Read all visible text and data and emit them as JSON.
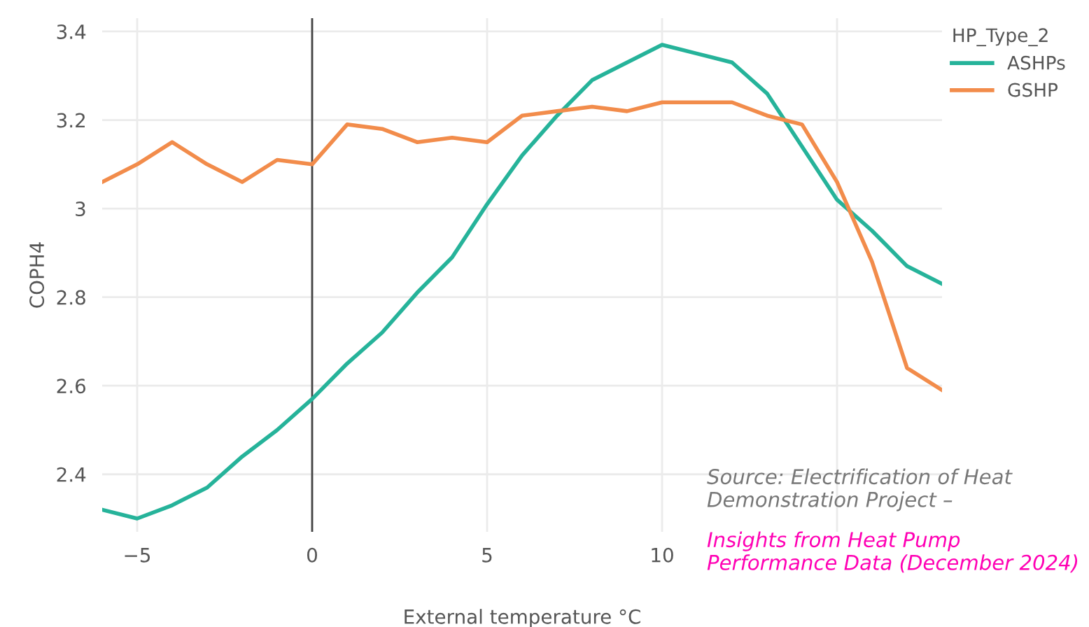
{
  "chart_data": {
    "type": "line",
    "xlabel": "External temperature °C",
    "ylabel": "COPH4",
    "legend_title": "HP_Type_2",
    "x": [
      -6,
      -5,
      -4,
      -3,
      -2,
      -1,
      0,
      1,
      2,
      3,
      4,
      5,
      6,
      7,
      8,
      9,
      10,
      11,
      12,
      13,
      14,
      15,
      16,
      17,
      18
    ],
    "series": [
      {
        "name": "ASHPs",
        "color": "#26b39a",
        "values": [
          2.32,
          2.3,
          2.33,
          2.37,
          2.44,
          2.5,
          2.57,
          2.65,
          2.72,
          2.81,
          2.89,
          3.01,
          3.12,
          3.21,
          3.29,
          3.33,
          3.37,
          3.35,
          3.33,
          3.26,
          3.14,
          3.02,
          2.95,
          2.87,
          2.83
        ]
      },
      {
        "name": "GSHP",
        "color": "#f28c4b",
        "values": [
          3.06,
          3.1,
          3.15,
          3.1,
          3.06,
          3.11,
          3.1,
          3.19,
          3.18,
          3.15,
          3.16,
          3.15,
          3.21,
          3.22,
          3.23,
          3.22,
          3.24,
          3.24,
          3.24,
          3.21,
          3.19,
          3.06,
          2.88,
          2.64,
          2.59
        ]
      }
    ],
    "xlim": [
      -6,
      18
    ],
    "ylim": [
      2.27,
      3.43
    ],
    "xticks": [
      {
        "value": -5,
        "label": "−5"
      },
      0,
      5,
      10,
      {
        "value": 15,
        "label": null
      }
    ],
    "yticks": [
      2.4,
      2.6,
      2.8,
      {
        "value": 3,
        "label": "3"
      },
      3.2,
      3.4
    ],
    "ref_lines": [
      {
        "axis": "x",
        "value": 0,
        "color": "#444444"
      }
    ],
    "grid": true,
    "legend": "top right",
    "marker": "none",
    "line_style": "solid",
    "annotations": [
      "Source: Electrification of Heat Demonstration Project –",
      "Insights from Heat Pump Performance Data (December 2024)"
    ]
  }
}
